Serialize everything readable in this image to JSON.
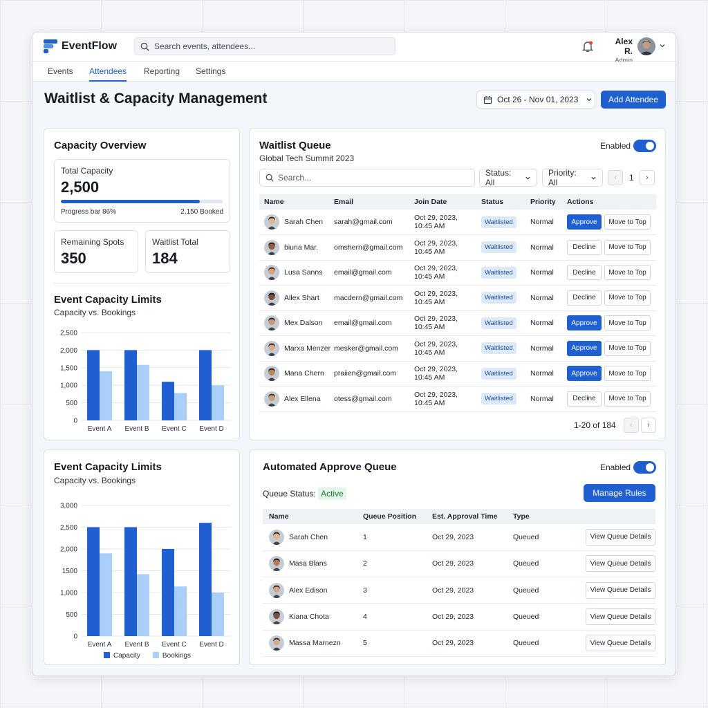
{
  "app": {
    "name": "EventFlow"
  },
  "search": {
    "placeholder": "Search events, attendees..."
  },
  "user": {
    "name": "Alex R.",
    "role": "Admin"
  },
  "nav": {
    "tabs": [
      "Events",
      "Attendees",
      "Reporting",
      "Settings"
    ],
    "active": "Attendees"
  },
  "page": {
    "title": "Waitlist & Capacity Management",
    "date_range": "Oct 26 - Nov 01, 2023",
    "add_button": "Add Attendee"
  },
  "colors": {
    "accent": "#1f5fd0",
    "capacity": "#1f5fd0",
    "bookings": "#a8d0fa",
    "active_status": "#1f7a37"
  },
  "capacity_overview": {
    "title": "Capacity Overview",
    "total_label": "Total Capacity",
    "total_value": "2,500",
    "progress_label": "Progress bar 86%",
    "progress": 0.86,
    "booked_label": "2,150 Booked",
    "remaining_label": "Remaining Spots",
    "remaining_value": "350",
    "waitlist_label": "Waitlist Total",
    "waitlist_value": "184",
    "limits_title": "Event Capacity Limits",
    "limits_sub": "Capacity vs. Bookings"
  },
  "limits_card": {
    "title": "Event Capacity Limits",
    "sub": "Capacity vs. Bookings",
    "legend_capacity": "Capacity",
    "legend_bookings": "Bookings"
  },
  "chart_data": [
    {
      "type": "bar",
      "title": "Event Capacity Limits",
      "subtitle": "Capacity vs. Bookings",
      "categories": [
        "Event A",
        "Event B",
        "Event C",
        "Event D"
      ],
      "series": [],
      "values": {
        "capacity": [
          2000,
          2000,
          1100,
          2000
        ],
        "bookings": [
          1400,
          1580,
          780,
          1000
        ]
      },
      "ylim": [
        0,
        2500
      ],
      "yticks": [
        "0",
        "500",
        "1,000",
        "1,500",
        "2,000",
        "2,500"
      ],
      "grid": true
    },
    {
      "type": "bar",
      "title": "Event Capacity Limits",
      "subtitle": "Capacity vs. Bookings",
      "categories": [
        "Event A",
        "Event B",
        "Event C",
        "Event D"
      ],
      "series": [
        {
          "name": "Capacity",
          "values": [
            2500,
            2500,
            2000,
            2600
          ]
        },
        {
          "name": "Bookings",
          "values": [
            1900,
            1420,
            1140,
            1000
          ]
        }
      ],
      "ylim": [
        0,
        3000
      ],
      "yticks": [
        "0",
        "500",
        "1,000",
        "1500",
        "2,000",
        "2,500",
        "3,000"
      ],
      "grid": true,
      "legend": "bottom"
    }
  ],
  "waitlist": {
    "title": "Waitlist Queue",
    "event": "Global Tech Summit 2023",
    "toggle_label": "Enabled",
    "search_placeholder": "Search...",
    "status_filter": "Status: All",
    "priority_filter": "Priority: All",
    "page": "1",
    "pagination": "1-20 of 184",
    "columns": [
      "Name",
      "Email",
      "Join Date",
      "Status",
      "Priority",
      "Actions"
    ],
    "rows": [
      {
        "name": "Sarah Chen",
        "email": "sarah@gmail.com",
        "date1": "Oct 29, 2023,",
        "date2": "10:45 AM",
        "status": "Waitlisted",
        "priority": "Normal",
        "action": "Approve",
        "move": "Move to Top",
        "skin": "#e2b592",
        "hair": "#3a2a22"
      },
      {
        "name": "biuna Mar.",
        "email": "omshern@gmail.com",
        "date1": "Oct 29, 2023,",
        "date2": "10:45 AM",
        "status": "Waitlisted",
        "priority": "Normal",
        "action": "Decline",
        "move": "Move to Top",
        "skin": "#8f5f43",
        "hair": "#2a1c16"
      },
      {
        "name": "Lusa Sanns",
        "email": "email@gmail.com",
        "date1": "Oct 29, 2023,",
        "date2": "10:45 AM",
        "status": "Waitlisted",
        "priority": "Normal",
        "action": "Decline",
        "move": "Move to Top",
        "skin": "#d8a482",
        "hair": "#4a3328"
      },
      {
        "name": "Allex Shart",
        "email": "macdern@gmail.com",
        "date1": "Oct 29, 2023,",
        "date2": "10:45 AM",
        "status": "Waitlisted",
        "priority": "Normal",
        "action": "Decline",
        "move": "Move to Top",
        "skin": "#7a5040",
        "hair": "#1c1412"
      },
      {
        "name": "Mex Dalson",
        "email": "email@gmail.com",
        "date1": "Oct 29, 2023,",
        "date2": "10:45 AM",
        "status": "Waitlisted",
        "priority": "Normal",
        "action": "Approve",
        "move": "Move to Top",
        "skin": "#c9977a",
        "hair": "#2e2320"
      },
      {
        "name": "Marxa Menzer",
        "email": "mesker@gmail.com",
        "date1": "Oct 29, 2023,",
        "date2": "10:45 AM",
        "status": "Waitlisted",
        "priority": "Normal",
        "action": "Approve",
        "move": "Move to Top",
        "skin": "#d9ab8d",
        "hair": "#3b2d27"
      },
      {
        "name": "Mana Chern",
        "email": "praiien@gmail.com",
        "date1": "Oct 29, 2023,",
        "date2": "10:45 AM",
        "status": "Waitlisted",
        "priority": "Normal",
        "action": "Approve",
        "move": "Move to Top",
        "skin": "#b98468",
        "hair": "#2d221d"
      },
      {
        "name": "Alex Ellena",
        "email": "otess@gmail.com",
        "date1": "Oct 29, 2023,",
        "date2": "10:45 AM",
        "status": "Waitlisted",
        "priority": "Normal",
        "action": "Decline",
        "move": "Move to Top",
        "skin": "#caa07c",
        "hair": "#4a3a2a"
      }
    ]
  },
  "auto_queue": {
    "title": "Automated Approve Queue",
    "toggle_label": "Enabled",
    "status_label": "Queue Status:",
    "status_value": "Active",
    "manage_button": "Manage Rules",
    "columns": [
      "Name",
      "Queue Position",
      "Est. Approval Time",
      "Type"
    ],
    "rows": [
      {
        "name": "Sarah Chen",
        "position": "1",
        "time": "Oct 29, 2023",
        "type": "Queued",
        "action": "View Queue Details",
        "skin": "#e2b592",
        "hair": "#3a2a22"
      },
      {
        "name": "Masa Blans",
        "position": "2",
        "time": "Oct 29, 2023",
        "type": "Queued",
        "action": "View Queue Details",
        "skin": "#b07a5a",
        "hair": "#2a1c16"
      },
      {
        "name": "Alex Edison",
        "position": "3",
        "time": "Oct 29, 2023",
        "type": "Queued",
        "action": "View Queue Details",
        "skin": "#d4a688",
        "hair": "#3a2d26"
      },
      {
        "name": "Kiana Chota",
        "position": "4",
        "time": "Oct 29, 2023",
        "type": "Queued",
        "action": "View Queue Details",
        "skin": "#7a5040",
        "hair": "#1c1412"
      },
      {
        "name": "Massa Marnezn",
        "position": "5",
        "time": "Oct 29, 2023",
        "type": "Queued",
        "action": "View Queue Details",
        "skin": "#d8aa8a",
        "hair": "#3b2d27"
      }
    ]
  }
}
